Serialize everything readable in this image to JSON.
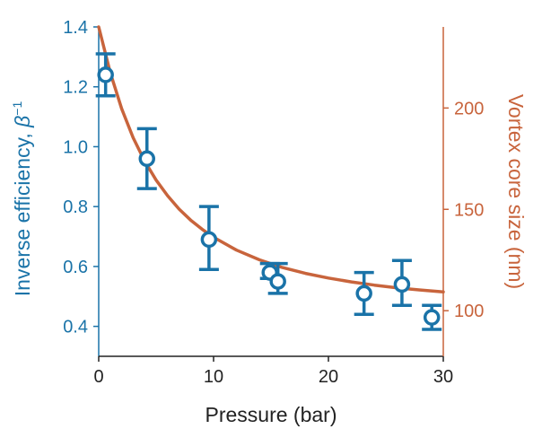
{
  "chart_data": {
    "type": "scatter",
    "xlabel": "Pressure (bar)",
    "xlim": [
      0,
      30
    ],
    "x_ticks": [
      "0",
      "10",
      "20",
      "30"
    ],
    "y_left": {
      "label_prefix": "Inverse efficiency, ",
      "label_symbol": "β",
      "label_sup": "−1",
      "lim": [
        0.3,
        1.4
      ],
      "ticks": [
        "0.4",
        "0.6",
        "0.8",
        "1.0",
        "1.2",
        "1.4"
      ],
      "color": "#1a73a8"
    },
    "y_right": {
      "label": "Vortex core size (nm)",
      "lim": [
        77.5,
        240.0
      ],
      "ticks": [
        "100",
        "150",
        "200"
      ],
      "color": "#c8643c"
    },
    "series": [
      {
        "axis": "left",
        "marker": "open-circle",
        "color": "#1a73a8",
        "points": [
          {
            "x": 0.6,
            "y": 1.24,
            "err_low": 1.17,
            "err_high": 1.31
          },
          {
            "x": 4.2,
            "y": 0.96,
            "err_low": 0.86,
            "err_high": 1.06
          },
          {
            "x": 9.6,
            "y": 0.69,
            "err_low": 0.59,
            "err_high": 0.8
          },
          {
            "x": 14.9,
            "y": 0.58,
            "err_low": 0.56,
            "err_high": 0.61
          },
          {
            "x": 15.6,
            "y": 0.55,
            "err_low": 0.51,
            "err_high": 0.61
          },
          {
            "x": 23.1,
            "y": 0.51,
            "err_low": 0.44,
            "err_high": 0.58
          },
          {
            "x": 26.4,
            "y": 0.54,
            "err_low": 0.47,
            "err_high": 0.62
          },
          {
            "x": 29.0,
            "y": 0.43,
            "err_low": 0.39,
            "err_high": 0.47
          }
        ]
      },
      {
        "axis": "right",
        "type": "line",
        "color": "#c8643c",
        "x": [
          0,
          1,
          2,
          3,
          4,
          5,
          6,
          7,
          8,
          9,
          10,
          12,
          14,
          16,
          18,
          20,
          22,
          24,
          26,
          28,
          30
        ],
        "y": [
          240,
          217.6,
          199.6,
          185.3,
          173.8,
          164.4,
          156.7,
          150.1,
          144.7,
          140.2,
          136.2,
          129.9,
          125.1,
          121.3,
          118.4,
          116.1,
          114.2,
          112.6,
          111.3,
          110.2,
          109.3
        ]
      }
    ]
  }
}
